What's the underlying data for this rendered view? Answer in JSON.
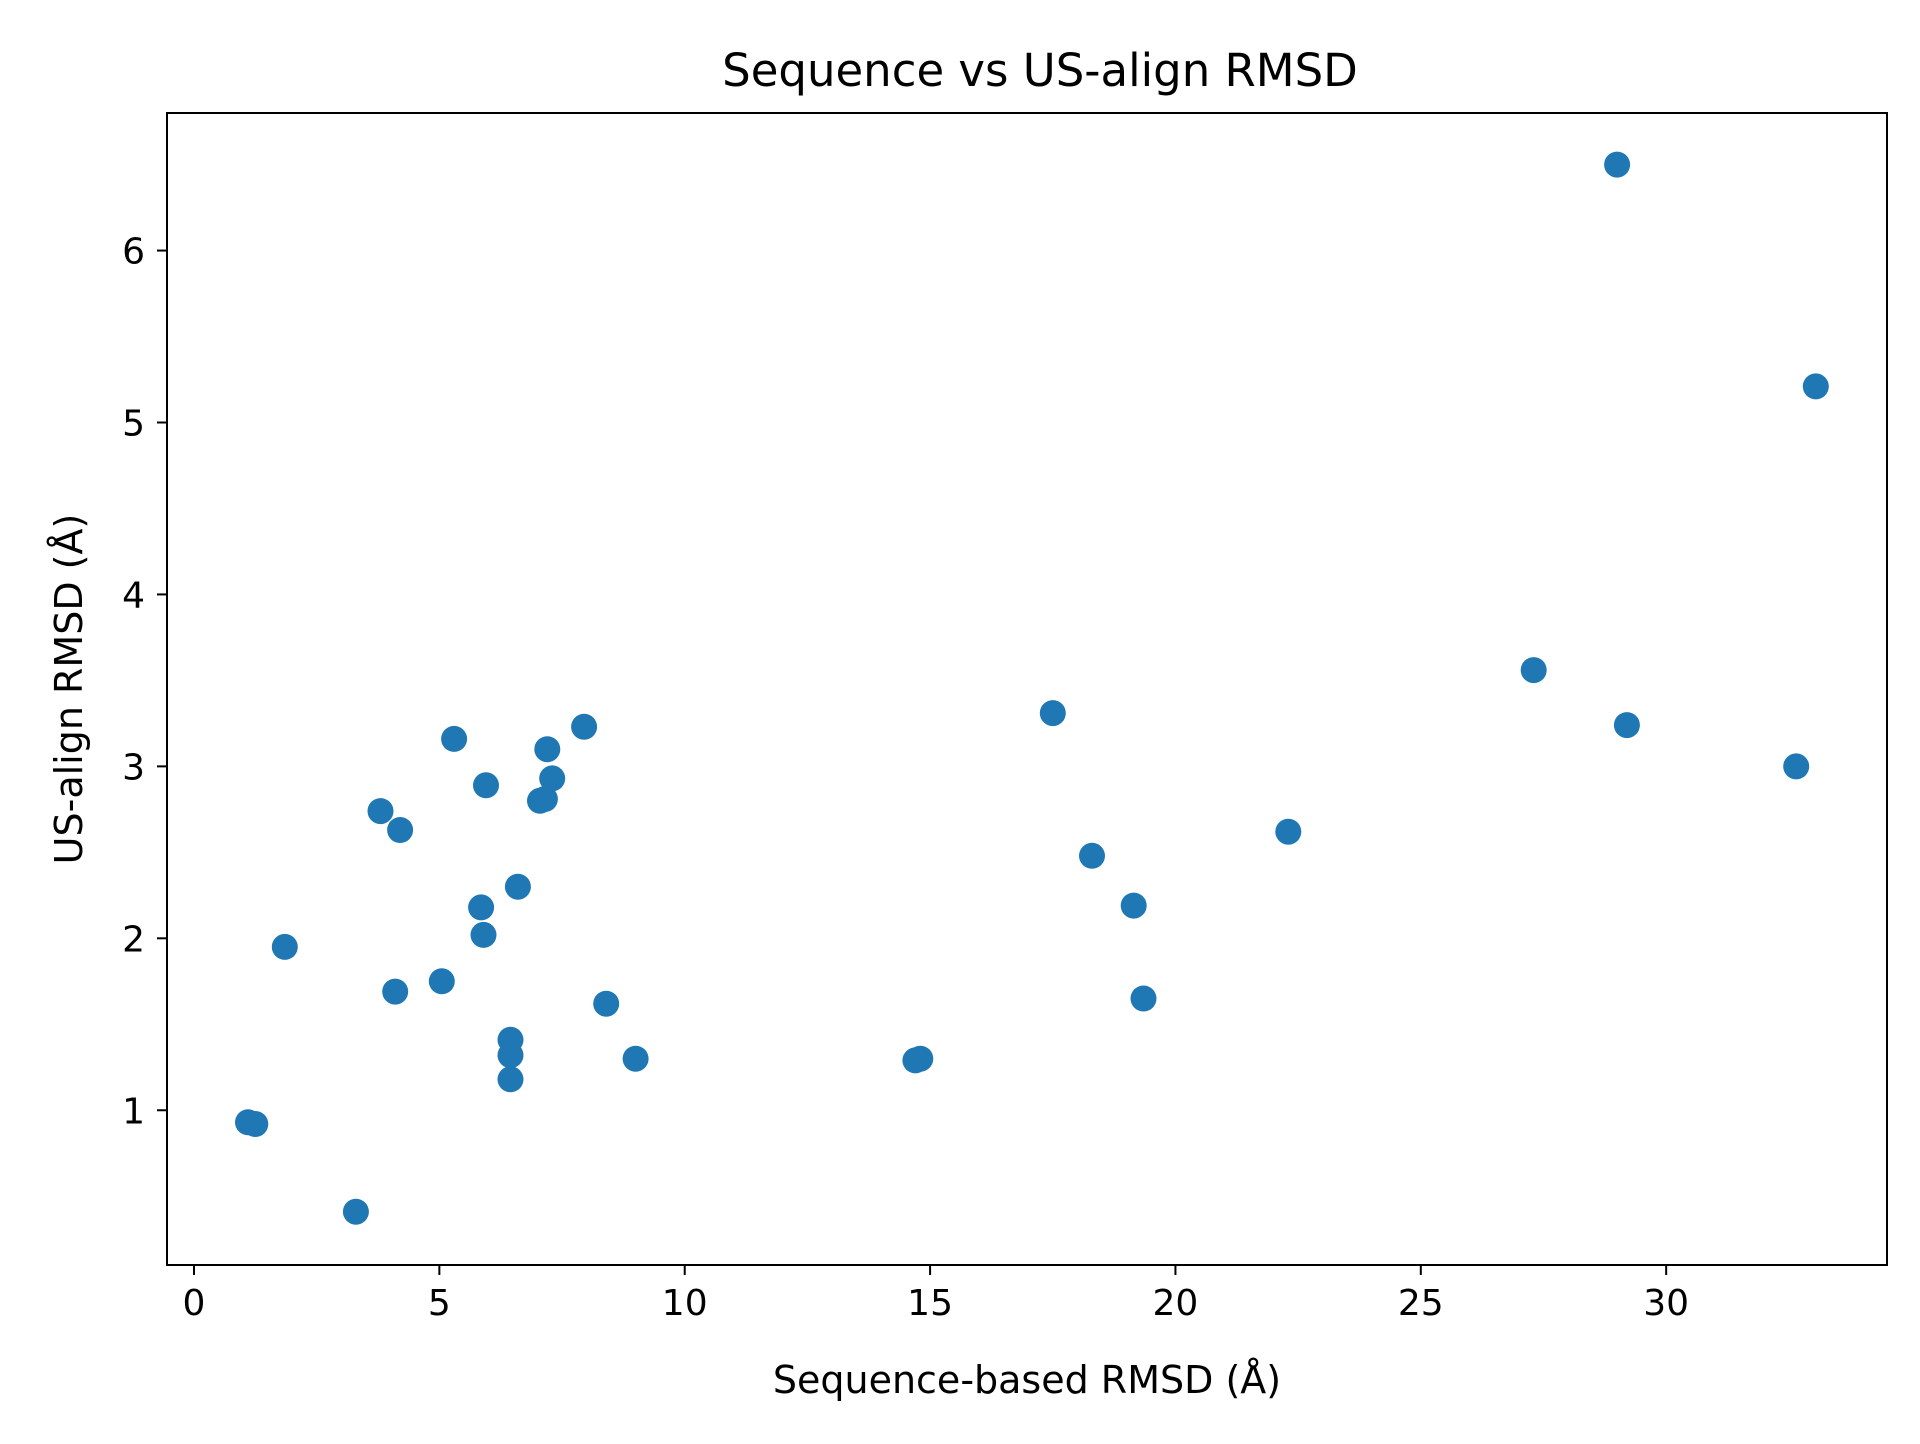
{
  "chart_data": {
    "type": "scatter",
    "title": "Sequence vs US-align RMSD",
    "xlabel": "Sequence-based RMSD (Å)",
    "ylabel": "US-align RMSD (Å)",
    "xlim": [
      -0.55,
      34.5
    ],
    "ylim": [
      0.1,
      6.8
    ],
    "xticks": [
      0,
      5,
      10,
      15,
      20,
      25,
      30
    ],
    "yticks": [
      1,
      2,
      3,
      4,
      5,
      6
    ],
    "xtick_labels": [
      "0",
      "5",
      "10",
      "15",
      "20",
      "25",
      "30"
    ],
    "ytick_labels": [
      "1",
      "2",
      "3",
      "4",
      "5",
      "6"
    ],
    "grid": false,
    "legend": "none",
    "color": "#1f77b4",
    "points": [
      {
        "x": 1.1,
        "y": 0.93
      },
      {
        "x": 1.25,
        "y": 0.92
      },
      {
        "x": 1.85,
        "y": 1.95
      },
      {
        "x": 3.3,
        "y": 0.41
      },
      {
        "x": 3.8,
        "y": 2.74
      },
      {
        "x": 4.1,
        "y": 1.69
      },
      {
        "x": 4.2,
        "y": 2.63
      },
      {
        "x": 5.05,
        "y": 1.75
      },
      {
        "x": 5.3,
        "y": 3.16
      },
      {
        "x": 5.85,
        "y": 2.18
      },
      {
        "x": 5.9,
        "y": 2.02
      },
      {
        "x": 5.95,
        "y": 2.89
      },
      {
        "x": 6.45,
        "y": 1.41
      },
      {
        "x": 6.45,
        "y": 1.32
      },
      {
        "x": 6.45,
        "y": 1.18
      },
      {
        "x": 6.6,
        "y": 2.3
      },
      {
        "x": 7.05,
        "y": 2.8
      },
      {
        "x": 7.15,
        "y": 2.81
      },
      {
        "x": 7.2,
        "y": 3.1
      },
      {
        "x": 7.3,
        "y": 2.93
      },
      {
        "x": 7.95,
        "y": 3.23
      },
      {
        "x": 8.4,
        "y": 1.62
      },
      {
        "x": 9.0,
        "y": 1.3
      },
      {
        "x": 14.7,
        "y": 1.29
      },
      {
        "x": 14.8,
        "y": 1.3
      },
      {
        "x": 17.5,
        "y": 3.31
      },
      {
        "x": 18.3,
        "y": 2.48
      },
      {
        "x": 19.15,
        "y": 2.19
      },
      {
        "x": 19.35,
        "y": 1.65
      },
      {
        "x": 22.3,
        "y": 2.62
      },
      {
        "x": 27.3,
        "y": 3.56
      },
      {
        "x": 29.0,
        "y": 6.5
      },
      {
        "x": 29.2,
        "y": 3.24
      },
      {
        "x": 32.65,
        "y": 3.0
      },
      {
        "x": 33.05,
        "y": 5.21
      }
    ]
  }
}
